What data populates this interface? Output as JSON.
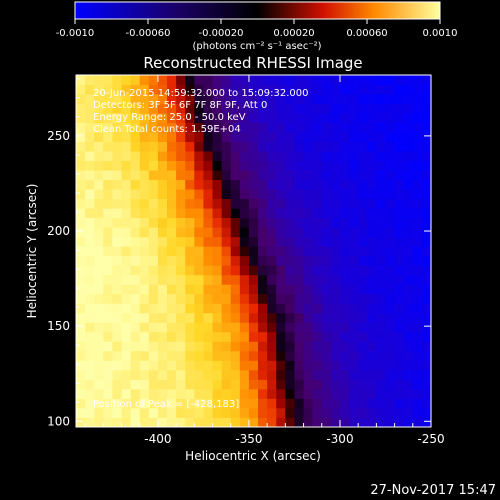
{
  "colorbar": {
    "tick_labels": [
      "-0.0010",
      "-0.00060",
      "-0.00020",
      "0.00020",
      "0.00060",
      "0.0010"
    ],
    "tick_values": [
      -0.001,
      -0.0006,
      -0.0002,
      0.0002,
      0.0006,
      0.001
    ],
    "range": [
      -0.001,
      0.001
    ],
    "unit_label": "(photons cm⁻² s⁻¹ asec⁻²)",
    "colors": [
      "#0000ff",
      "#1a0066",
      "#000000",
      "#d01000",
      "#ff8a00",
      "#ffff9e"
    ]
  },
  "chart_data": {
    "type": "heatmap",
    "title": "Reconstructed RHESSI Image",
    "xlabel": "Heliocentric X (arcsec)",
    "ylabel": "Heliocentric Y (arcsec)",
    "xlim": [
      -445,
      -250
    ],
    "ylim": [
      97,
      282
    ],
    "x_ticks": [
      -400,
      -350,
      -300,
      -250
    ],
    "x_tick_labels": [
      "-400",
      "-350",
      "-300",
      "-250"
    ],
    "y_ticks": [
      100,
      150,
      200,
      250
    ],
    "y_tick_labels": [
      "100",
      "150",
      "200",
      "250"
    ],
    "pixel_size_arcsec": 5,
    "front": {
      "description": "intensity decreases from bright (left) to dark boundary then blue (right)",
      "boundary_x_at_y": [
        {
          "y": 97,
          "x": -325
        },
        {
          "y": 150,
          "x": -335
        },
        {
          "y": 200,
          "x": -355
        },
        {
          "y": 250,
          "x": -375
        },
        {
          "y": 282,
          "x": -385
        }
      ]
    },
    "peak": {
      "x": -428,
      "y": 183
    }
  },
  "annotations": {
    "time": "20-Jun-2015 14:59:32.000 to 15:09:32.000",
    "detectors": "Detectors: 3F 5F 6F 7F 8F 9F, Att 0",
    "energy": "Energy Range: 25.0 - 50.0 keV",
    "method": "Clean    Total counts: 1.59E+04",
    "peak_position": "Position of Peak = [-428,183]"
  },
  "footer_date": "27-Nov-2017 15:47"
}
